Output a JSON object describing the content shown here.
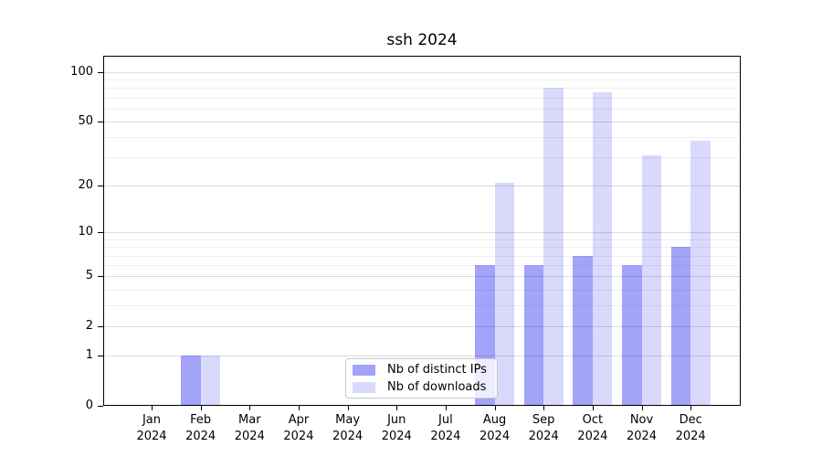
{
  "chart_data": {
    "type": "bar",
    "title": "ssh 2024",
    "categories": [
      "Jan 2024",
      "Feb 2024",
      "Mar 2024",
      "Apr 2024",
      "May 2024",
      "Jun 2024",
      "Jul 2024",
      "Aug 2024",
      "Sep 2024",
      "Oct 2024",
      "Nov 2024",
      "Dec 2024"
    ],
    "x_tick_months": [
      "Jan",
      "Feb",
      "Mar",
      "Apr",
      "May",
      "Jun",
      "Jul",
      "Aug",
      "Sep",
      "Oct",
      "Nov",
      "Dec"
    ],
    "x_tick_year": "2024",
    "series": [
      {
        "name": "Nb of distinct IPs",
        "values": [
          0,
          1,
          0,
          0,
          0,
          0,
          0,
          6,
          6,
          7,
          6,
          8
        ],
        "color": "#0000ee",
        "alpha": 0.36
      },
      {
        "name": "Nb of downloads",
        "values": [
          0,
          1,
          0,
          0,
          0,
          0,
          0,
          21,
          80,
          75,
          31,
          38
        ],
        "color": "#0000ee",
        "alpha": 0.15
      }
    ],
    "yscale": "log1p",
    "ylim": [
      0,
      126
    ],
    "yticks": [
      0,
      1,
      2,
      5,
      10,
      20,
      50,
      100
    ],
    "minor_yticks": [
      3,
      4,
      6,
      7,
      8,
      9,
      30,
      40,
      60,
      70,
      80,
      90
    ],
    "grid": true,
    "legend": {
      "position": "lower-center"
    },
    "colors": {
      "major_grid": "#dcdcdc",
      "minor_grid": "#f0f0f0",
      "spine": "#000000",
      "text": "#000000"
    }
  }
}
